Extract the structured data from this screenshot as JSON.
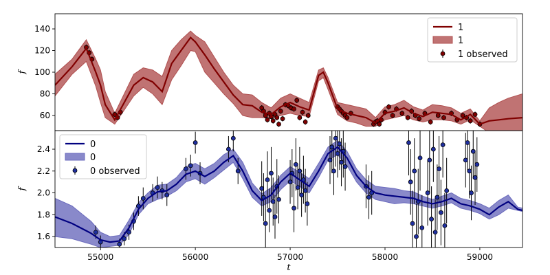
{
  "chart_data": [
    {
      "type": "line",
      "panel": "top",
      "xlabel": "",
      "ylabel": "f",
      "xlim": [
        54520,
        59450
      ],
      "ylim": [
        46,
        154
      ],
      "yticks": [
        60,
        80,
        100,
        120,
        140
      ],
      "yticks_label": [
        "60",
        "80",
        "100",
        "120",
        "140"
      ],
      "legend": {
        "placement": "top-right",
        "entries": [
          "1",
          "1",
          "1 observed"
        ]
      },
      "colors": {
        "line": "#800000",
        "band": "#b05050",
        "point": "#800000"
      },
      "series": [
        {
          "name": "1",
          "kind": "mean",
          "x": [
            54520,
            54700,
            54850,
            54950,
            55000,
            55050,
            55150,
            55250,
            55350,
            55450,
            55550,
            55650,
            55750,
            55850,
            55950,
            56000,
            56100,
            56200,
            56300,
            56400,
            56500,
            56600,
            56700,
            56800,
            56900,
            57000,
            57100,
            57200,
            57300,
            57350,
            57400,
            57500,
            57600,
            57700,
            57800,
            57900,
            58000,
            58100,
            58200,
            58300,
            58400,
            58500,
            58600,
            58700,
            58800,
            58900,
            59000,
            59100,
            59200,
            59300,
            59450
          ],
          "y": [
            88,
            105,
            122,
            100,
            88,
            70,
            56,
            72,
            88,
            95,
            91,
            82,
            108,
            120,
            132,
            128,
            116,
            103,
            91,
            79,
            70,
            69,
            63,
            61,
            68,
            72,
            68,
            65,
            97,
            100,
            90,
            66,
            62,
            60,
            58,
            53,
            62,
            64,
            67,
            62,
            59,
            63,
            62,
            61,
            56,
            61,
            52,
            55,
            56,
            57,
            58
          ],
          "lower": [
            78,
            98,
            110,
            87,
            72,
            58,
            52,
            65,
            78,
            86,
            80,
            70,
            93,
            106,
            120,
            119,
            100,
            90,
            80,
            71,
            60,
            58,
            58,
            57,
            60,
            62,
            60,
            59,
            92,
            95,
            84,
            61,
            55,
            53,
            50,
            50,
            56,
            58,
            60,
            56,
            54,
            56,
            56,
            55,
            52,
            56,
            50,
            44,
            42,
            40,
            38
          ],
          "upper": [
            98,
            112,
            130,
            112,
            102,
            82,
            62,
            80,
            98,
            104,
            102,
            96,
            120,
            130,
            138,
            134,
            128,
            114,
            100,
            88,
            80,
            79,
            72,
            67,
            76,
            80,
            76,
            72,
            102,
            104,
            95,
            72,
            70,
            68,
            66,
            58,
            68,
            70,
            74,
            68,
            65,
            70,
            69,
            67,
            62,
            66,
            55,
            67,
            72,
            76,
            80
          ]
        },
        {
          "name": "1 observed",
          "kind": "points",
          "x": [
            54850,
            54880,
            54910,
            55150,
            55180,
            55210,
            56700,
            56720,
            56740,
            56760,
            56780,
            56800,
            56820,
            56840,
            56860,
            56880,
            56900,
            56920,
            56950,
            56980,
            57010,
            57040,
            57070,
            57100,
            57130,
            57160,
            57190,
            57500,
            57520,
            57540,
            57560,
            57580,
            57600,
            57640,
            57880,
            57900,
            57920,
            57940,
            57960,
            58000,
            58040,
            58080,
            58120,
            58180,
            58240,
            58280,
            58320,
            58360,
            58420,
            58480,
            58560,
            58620,
            58700,
            58760,
            58820,
            58860,
            58900,
            58950,
            59000
          ],
          "y": [
            123,
            118,
            112,
            61,
            58,
            63,
            67,
            64,
            60,
            56,
            62,
            59,
            55,
            61,
            58,
            52,
            64,
            57,
            70,
            69,
            67,
            66,
            74,
            58,
            63,
            54,
            60,
            68,
            66,
            64,
            62,
            60,
            58,
            62,
            52,
            54,
            55,
            52,
            56,
            63,
            68,
            60,
            66,
            62,
            58,
            64,
            60,
            57,
            62,
            54,
            60,
            58,
            62,
            56,
            60,
            58,
            55,
            61,
            52
          ]
        }
      ]
    },
    {
      "type": "line",
      "panel": "bottom",
      "xlabel": "t",
      "ylabel": "f",
      "xlim": [
        54520,
        59450
      ],
      "ylim": [
        1.5,
        2.57
      ],
      "xticks": [
        55000,
        56000,
        57000,
        58000,
        59000
      ],
      "xticks_label": [
        "55000",
        "56000",
        "57000",
        "58000",
        "59000"
      ],
      "yticks": [
        1.6,
        1.8,
        2.0,
        2.2,
        2.4
      ],
      "yticks_label": [
        "1.6",
        "1.8",
        "2.0",
        "2.2",
        "2.4"
      ],
      "legend": {
        "placement": "top-left",
        "entries": [
          "0",
          "0",
          "0 observed"
        ]
      },
      "colors": {
        "line": "#000080",
        "band": "#6b6bbd",
        "point": "#1f2f9f"
      },
      "series": [
        {
          "name": "0",
          "kind": "mean",
          "x": [
            54520,
            54700,
            54900,
            55000,
            55100,
            55200,
            55300,
            55400,
            55500,
            55600,
            55700,
            55800,
            55900,
            56000,
            56100,
            56200,
            56300,
            56400,
            56500,
            56600,
            56700,
            56800,
            56900,
            57000,
            57100,
            57200,
            57300,
            57400,
            57500,
            57600,
            57700,
            57800,
            57900,
            58000,
            58100,
            58200,
            58300,
            58400,
            58500,
            58600,
            58700,
            58800,
            58900,
            59000,
            59100,
            59200,
            59300,
            59400,
            59450
          ],
          "y": [
            1.78,
            1.72,
            1.63,
            1.57,
            1.55,
            1.56,
            1.68,
            1.85,
            1.95,
            2.01,
            2.02,
            2.08,
            2.17,
            2.2,
            2.15,
            2.2,
            2.28,
            2.34,
            2.2,
            2.02,
            1.93,
            1.98,
            2.1,
            2.18,
            2.12,
            2.06,
            2.2,
            2.36,
            2.42,
            2.32,
            2.16,
            2.06,
            2.0,
            1.98,
            1.97,
            1.96,
            1.95,
            1.92,
            1.9,
            1.92,
            1.95,
            1.9,
            1.88,
            1.85,
            1.8,
            1.87,
            1.92,
            1.85,
            1.84
          ],
          "lower": [
            1.6,
            1.58,
            1.53,
            1.5,
            1.51,
            1.52,
            1.62,
            1.8,
            1.9,
            1.94,
            1.97,
            2.02,
            2.1,
            2.13,
            2.08,
            2.14,
            2.21,
            2.28,
            2.13,
            1.96,
            1.88,
            1.92,
            2.03,
            2.11,
            2.06,
            2.0,
            2.14,
            2.3,
            2.35,
            2.25,
            2.1,
            2.0,
            1.94,
            1.92,
            1.9,
            1.91,
            1.9,
            1.88,
            1.86,
            1.88,
            1.91,
            1.86,
            1.84,
            1.81,
            1.76,
            1.8,
            1.86,
            1.84,
            1.83
          ],
          "upper": [
            1.95,
            1.88,
            1.74,
            1.64,
            1.6,
            1.61,
            1.75,
            1.91,
            2.0,
            2.07,
            2.08,
            2.14,
            2.24,
            2.27,
            2.22,
            2.27,
            2.35,
            2.4,
            2.28,
            2.09,
            1.99,
            2.05,
            2.16,
            2.24,
            2.19,
            2.13,
            2.27,
            2.42,
            2.48,
            2.38,
            2.22,
            2.12,
            2.06,
            2.05,
            2.04,
            2.02,
            2.01,
            1.97,
            1.94,
            1.97,
            2.0,
            1.95,
            1.93,
            1.9,
            1.86,
            1.93,
            1.98,
            1.87,
            1.86
          ]
        },
        {
          "name": "0 observed",
          "kind": "points",
          "x": [
            54950,
            55000,
            55200,
            55250,
            55300,
            55350,
            55400,
            55450,
            55550,
            55600,
            55650,
            55700,
            55900,
            55950,
            56000,
            56050,
            56350,
            56400,
            56450,
            56700,
            56720,
            56740,
            56760,
            56780,
            56800,
            56820,
            56840,
            56860,
            56880,
            57000,
            57020,
            57040,
            57060,
            57080,
            57100,
            57120,
            57140,
            57160,
            57180,
            57420,
            57440,
            57460,
            57480,
            57500,
            57520,
            57540,
            57560,
            57580,
            57800,
            57830,
            57860,
            58250,
            58270,
            58290,
            58310,
            58330,
            58350,
            58370,
            58390,
            58450,
            58470,
            58490,
            58510,
            58530,
            58550,
            58570,
            58590,
            58610,
            58630,
            58650,
            58850,
            58870,
            58890,
            58910,
            58930,
            58950,
            58970
          ],
          "y": [
            1.64,
            1.55,
            1.53,
            1.58,
            1.64,
            1.74,
            1.88,
            1.95,
            2.0,
            2.05,
            2.02,
            1.98,
            2.22,
            2.25,
            2.46,
            2.18,
            2.4,
            2.5,
            2.2,
            2.04,
            1.96,
            1.72,
            2.12,
            1.84,
            2.18,
            1.92,
            1.78,
            2.06,
            1.94,
            2.1,
            2.18,
            1.86,
            2.26,
            2.05,
            2.2,
            1.98,
            2.12,
            2.02,
            1.9,
            2.3,
            2.42,
            2.2,
            2.5,
            2.36,
            2.45,
            2.28,
            2.38,
            2.24,
            2.06,
            1.96,
            2.0,
            2.46,
            2.1,
            1.72,
            2.2,
            1.6,
            1.92,
            2.32,
            1.68,
            2.0,
            2.3,
            1.76,
            2.4,
            1.64,
            1.96,
            2.22,
            1.82,
            2.44,
            1.7,
            2.02,
            2.3,
            2.46,
            2.2,
            2.0,
            2.38,
            2.14,
            2.26
          ],
          "err": [
            0.06,
            0.06,
            0.05,
            0.06,
            0.07,
            0.08,
            0.09,
            0.1,
            0.08,
            0.1,
            0.08,
            0.1,
            0.1,
            0.1,
            0.1,
            0.1,
            0.12,
            0.12,
            0.12,
            0.25,
            0.22,
            0.22,
            0.26,
            0.2,
            0.24,
            0.22,
            0.2,
            0.25,
            0.22,
            0.2,
            0.22,
            0.22,
            0.24,
            0.2,
            0.22,
            0.2,
            0.22,
            0.2,
            0.2,
            0.22,
            0.24,
            0.22,
            0.26,
            0.22,
            0.24,
            0.22,
            0.24,
            0.22,
            0.2,
            0.2,
            0.2,
            0.3,
            0.3,
            0.3,
            0.3,
            0.3,
            0.3,
            0.3,
            0.3,
            0.3,
            0.3,
            0.3,
            0.3,
            0.3,
            0.3,
            0.3,
            0.3,
            0.3,
            0.3,
            0.3,
            0.25,
            0.25,
            0.25,
            0.25,
            0.25,
            0.25,
            0.25
          ]
        }
      ]
    }
  ]
}
